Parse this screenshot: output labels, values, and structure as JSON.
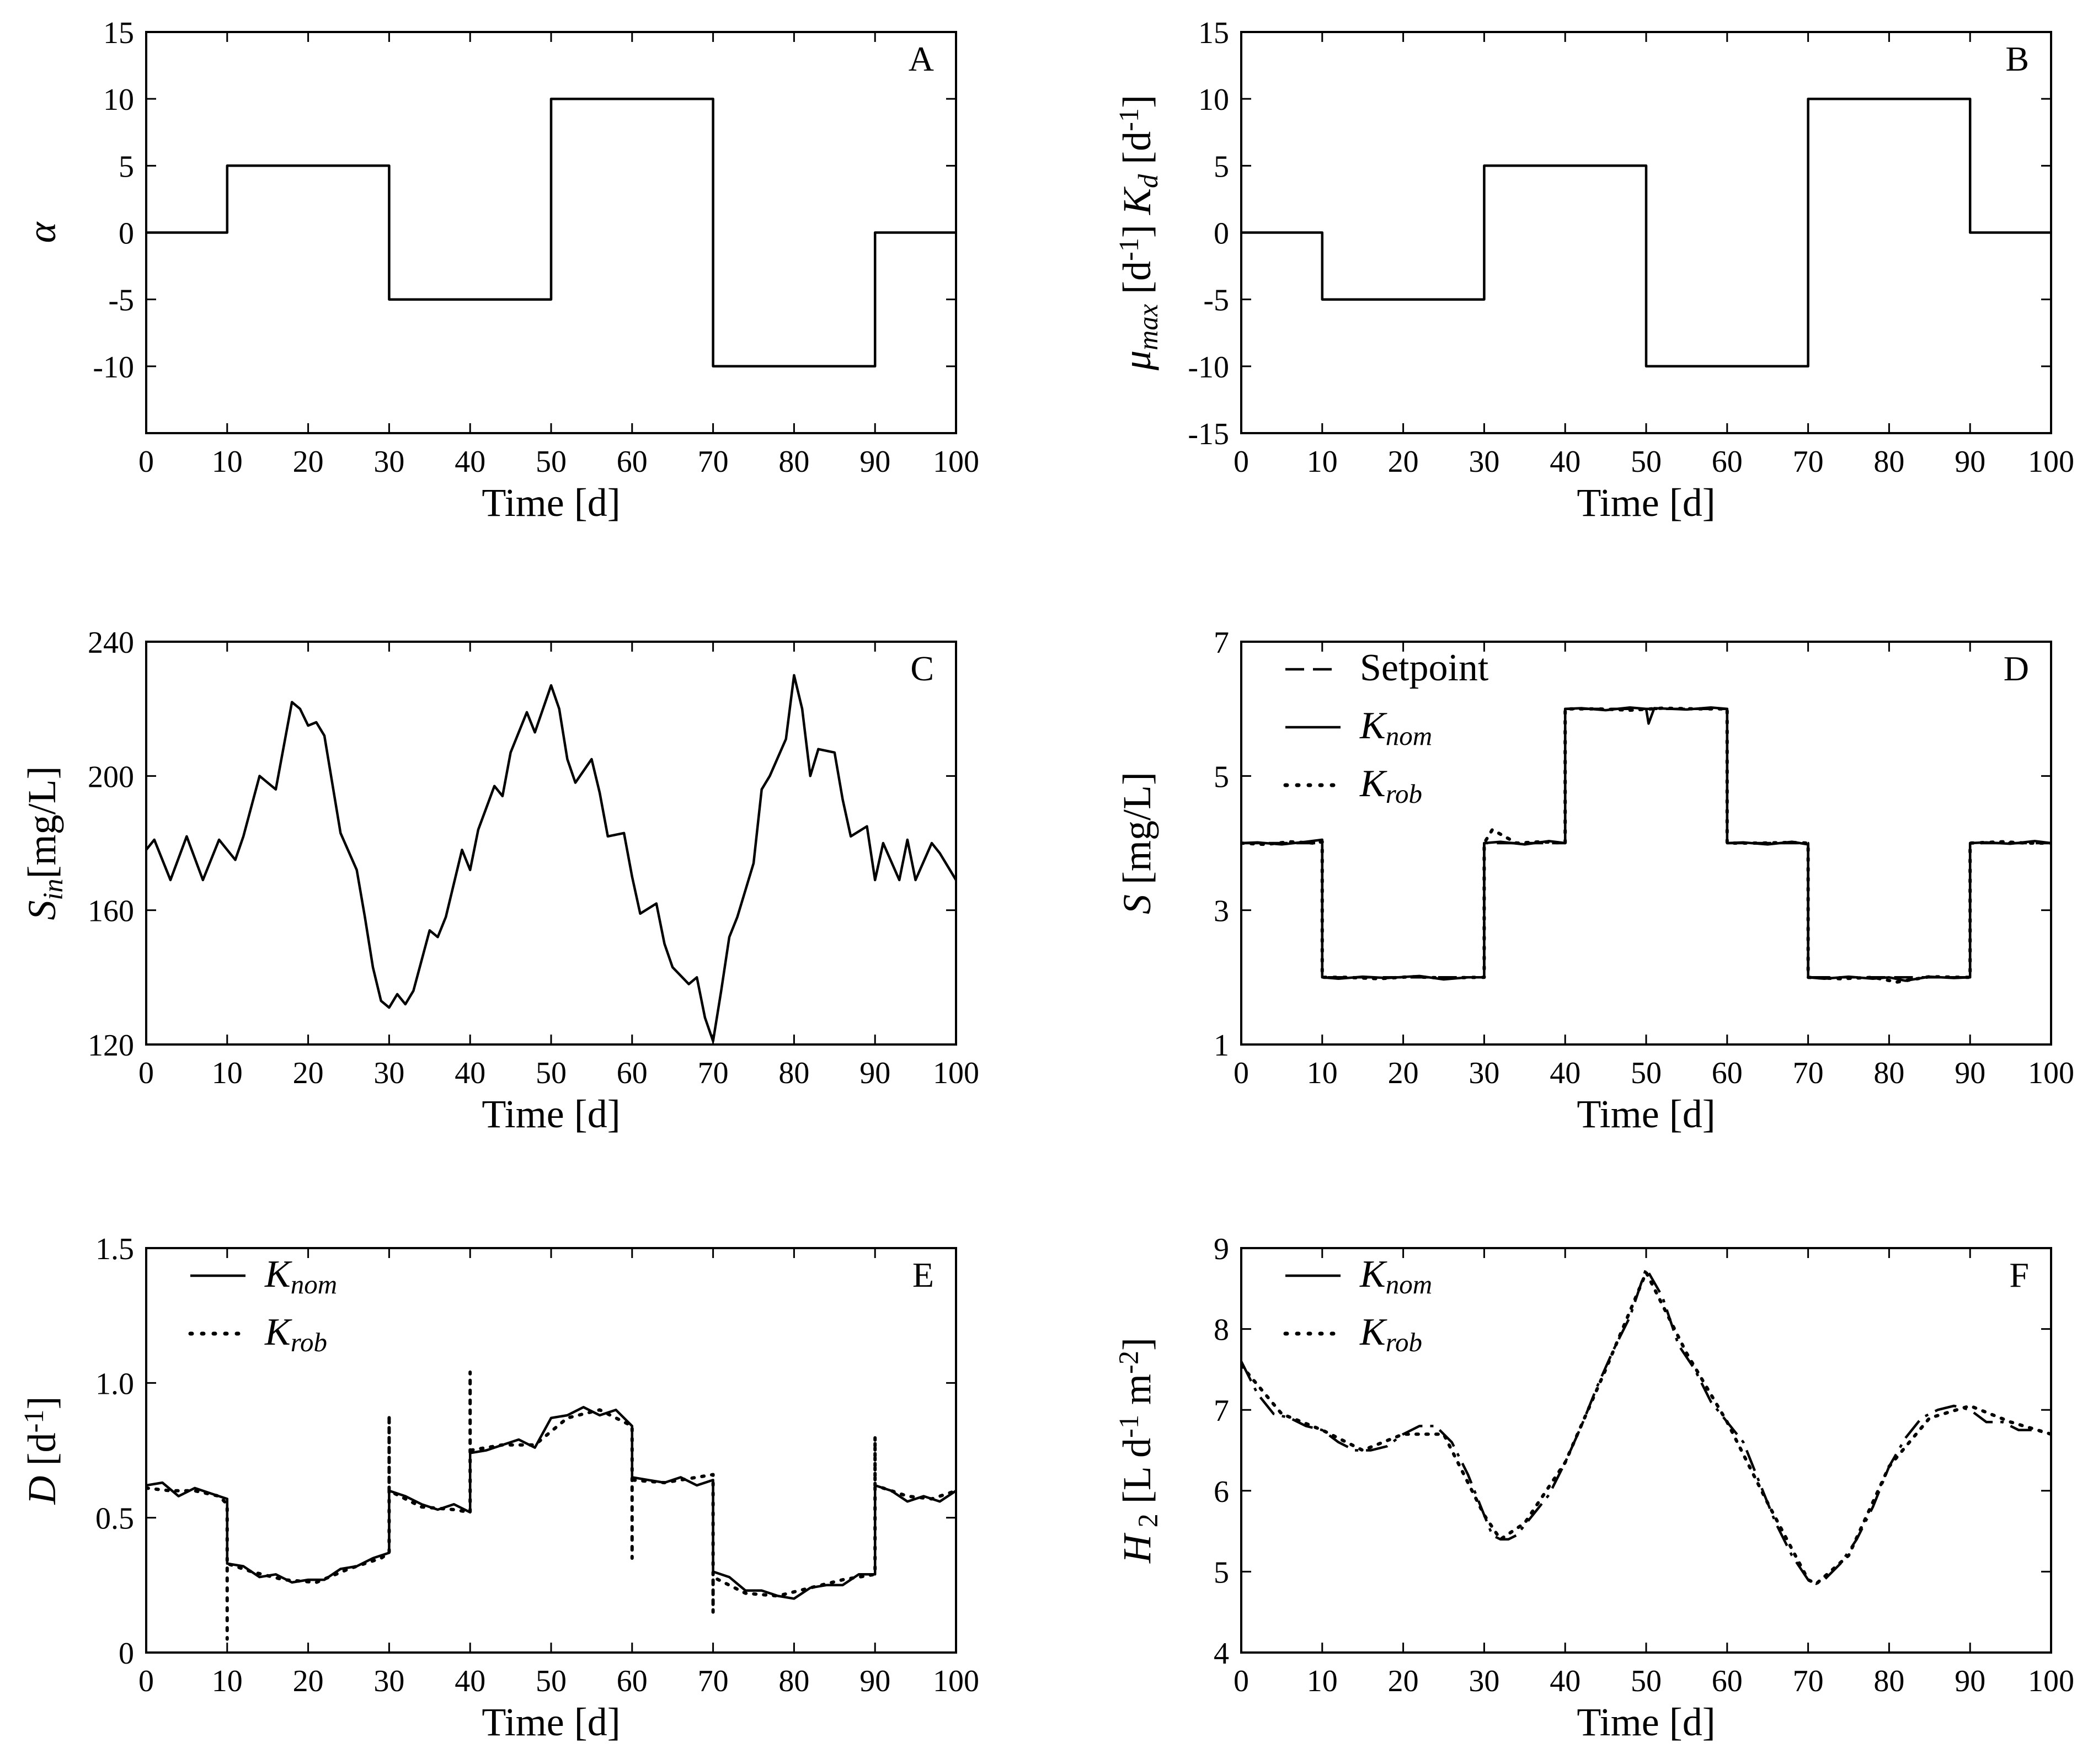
{
  "chart_data": [
    {
      "panel": "A",
      "type": "line",
      "ylabel": "α",
      "xlabel": "Time [d]",
      "xlim": [
        0,
        100
      ],
      "ylim": [
        -15,
        15
      ],
      "xticks": [
        "0",
        "10",
        "20",
        "30",
        "40",
        "50",
        "60",
        "70",
        "80",
        "90",
        "100"
      ],
      "yticks": [
        "-10",
        "-5",
        "0",
        "5",
        "10",
        "15"
      ],
      "series": [
        {
          "style": "solid",
          "x": [
            0,
            10,
            10,
            30,
            30,
            50,
            50,
            70,
            70,
            90,
            90,
            100
          ],
          "y": [
            0,
            0,
            5,
            5,
            -5,
            -5,
            10,
            10,
            -10,
            -10,
            0,
            0
          ]
        }
      ]
    },
    {
      "panel": "B",
      "type": "line",
      "ylabel": "μmax [d-1]  Kd [d-1]",
      "xlabel": "Time [d]",
      "xlim": [
        0,
        100
      ],
      "ylim": [
        -15,
        15
      ],
      "xticks": [
        "0",
        "10",
        "20",
        "30",
        "40",
        "50",
        "60",
        "70",
        "80",
        "90",
        "100"
      ],
      "yticks": [
        "-15",
        "-10",
        "-5",
        "0",
        "5",
        "10",
        "15"
      ],
      "series": [
        {
          "style": "solid",
          "x": [
            0,
            10,
            10,
            30,
            30,
            50,
            50,
            70,
            70,
            90,
            90,
            100
          ],
          "y": [
            0,
            0,
            -5,
            -5,
            5,
            5,
            -10,
            -10,
            10,
            10,
            0,
            0
          ]
        }
      ]
    },
    {
      "panel": "C",
      "type": "line",
      "ylabel": "Sin[mg/L]",
      "xlabel": "Time [d]",
      "xlim": [
        0,
        100
      ],
      "ylim": [
        120,
        240
      ],
      "xticks": [
        "0",
        "10",
        "20",
        "30",
        "40",
        "50",
        "60",
        "70",
        "80",
        "90",
        "100"
      ],
      "yticks": [
        "120",
        "160",
        "200",
        "240"
      ],
      "series": [
        {
          "style": "solid",
          "x": [
            0,
            1,
            3,
            5,
            7,
            9,
            11,
            12,
            14,
            16,
            18,
            19,
            20,
            21,
            22,
            24,
            26,
            27,
            28,
            29,
            30,
            31,
            32,
            33,
            35,
            36,
            37,
            39,
            40,
            41,
            43,
            44,
            45,
            47,
            48,
            49,
            50,
            51,
            52,
            53,
            55,
            56,
            57,
            59,
            60,
            61,
            63,
            64,
            65,
            67,
            68,
            69,
            70,
            71,
            72,
            73,
            75,
            76,
            77,
            79,
            80,
            81,
            82,
            83,
            85,
            86,
            87,
            89,
            90,
            91,
            93,
            94,
            95,
            97,
            98,
            100
          ],
          "y": [
            178,
            181,
            169,
            182,
            169,
            181,
            175,
            182,
            200,
            196,
            222,
            220,
            215,
            216,
            212,
            183,
            172,
            158,
            143,
            133,
            131,
            135,
            132,
            136,
            154,
            152,
            158,
            178,
            172,
            184,
            197,
            194,
            207,
            219,
            213,
            220,
            227,
            220,
            205,
            198,
            205,
            195,
            182,
            183,
            170,
            159,
            162,
            150,
            143,
            138,
            140,
            128,
            121,
            136,
            152,
            158,
            174,
            196,
            200,
            211,
            230,
            220,
            200,
            208,
            207,
            193,
            182,
            185,
            169,
            180,
            169,
            181,
            169,
            180,
            177,
            169
          ]
        }
      ]
    },
    {
      "panel": "D",
      "type": "line",
      "ylabel": "S [mg/L]",
      "xlabel": "Time [d]",
      "xlim": [
        0,
        100
      ],
      "ylim": [
        1,
        7
      ],
      "xticks": [
        "0",
        "10",
        "20",
        "30",
        "40",
        "50",
        "60",
        "70",
        "80",
        "90",
        "100"
      ],
      "yticks": [
        "1",
        "3",
        "5",
        "7"
      ],
      "legend": [
        "Setpoint",
        "Knom",
        "Krob"
      ],
      "legend_position": "top-left",
      "series": [
        {
          "name": "Setpoint",
          "style": "dashed",
          "x": [
            0,
            10,
            10,
            30,
            30,
            40,
            40,
            60,
            60,
            70,
            70,
            90,
            90,
            100
          ],
          "y": [
            4,
            4,
            2,
            2,
            4,
            4,
            6,
            6,
            4,
            4,
            2,
            2,
            4,
            4
          ]
        },
        {
          "name": "Knom",
          "style": "solid",
          "x": [
            0,
            2,
            5,
            8,
            10,
            10,
            12,
            15,
            18,
            22,
            25,
            28,
            30,
            30,
            32,
            35,
            38,
            40,
            40,
            42,
            45,
            48,
            50,
            50.3,
            51,
            55,
            58,
            60,
            60,
            62,
            65,
            68,
            70,
            70,
            72,
            75,
            78,
            80,
            82,
            85,
            88,
            90,
            90,
            92,
            95,
            98,
            100
          ],
          "y": [
            4,
            4.01,
            3.98,
            4.02,
            4.05,
            2,
            1.98,
            2.01,
            1.99,
            2.02,
            1.97,
            2.0,
            2.0,
            4,
            4.02,
            3.98,
            4.03,
            4.0,
            6,
            6.01,
            5.98,
            6.02,
            6.0,
            5.78,
            6.01,
            5.99,
            6.02,
            6.0,
            4,
            4.01,
            3.98,
            4.02,
            3.98,
            2,
            1.98,
            2.01,
            1.98,
            2.0,
            1.95,
            2.01,
            1.99,
            2.0,
            4,
            4.01,
            3.99,
            4.03,
            4.0
          ]
        },
        {
          "name": "Krob",
          "style": "dotted",
          "x": [
            0,
            3,
            6,
            9,
            10,
            10,
            13,
            17,
            21,
            25,
            29,
            30,
            30,
            31,
            34,
            37,
            40,
            40,
            44,
            48,
            52,
            56,
            60,
            60,
            64,
            68,
            70,
            70,
            74,
            78,
            81,
            85,
            89,
            90,
            90,
            94,
            97,
            100
          ],
          "y": [
            4,
            3.98,
            4.02,
            4.0,
            4.02,
            2,
            2.0,
            1.98,
            2.01,
            1.99,
            2.0,
            2.0,
            4,
            4.2,
            4.0,
            4.02,
            4.0,
            6,
            6.0,
            5.98,
            6.01,
            6.0,
            6.0,
            4,
            4.0,
            4.01,
            4.0,
            2,
            1.98,
            2.0,
            1.93,
            2.01,
            2.0,
            2.0,
            4,
            4.02,
            4.0,
            4.0
          ]
        }
      ]
    },
    {
      "panel": "E",
      "type": "line",
      "ylabel": "D [d-1]",
      "xlabel": "Time [d]",
      "xlim": [
        0,
        100
      ],
      "ylim": [
        0,
        1.5
      ],
      "xticks": [
        "0",
        "10",
        "20",
        "30",
        "40",
        "50",
        "60",
        "70",
        "80",
        "90",
        "100"
      ],
      "yticks": [
        "0",
        "0.5",
        "1.0",
        "1.5"
      ],
      "legend": [
        "Knom",
        "Krob"
      ],
      "legend_position": "top-left",
      "series": [
        {
          "name": "Knom",
          "style": "solid",
          "x": [
            0,
            2,
            4,
            6,
            8,
            10,
            10,
            12,
            14,
            16,
            18,
            20,
            22,
            24,
            26,
            28,
            30,
            30,
            32,
            34,
            36,
            38,
            40,
            40,
            42,
            44,
            46,
            48,
            50,
            52,
            54,
            56,
            58,
            60,
            60,
            62,
            64,
            66,
            68,
            70,
            70,
            72,
            74,
            76,
            78,
            80,
            82,
            84,
            86,
            88,
            90,
            90,
            92,
            94,
            96,
            98,
            100
          ],
          "y": [
            0.62,
            0.63,
            0.58,
            0.61,
            0.59,
            0.57,
            0.33,
            0.32,
            0.28,
            0.29,
            0.26,
            0.27,
            0.27,
            0.31,
            0.32,
            0.35,
            0.37,
            0.6,
            0.58,
            0.55,
            0.53,
            0.55,
            0.52,
            0.74,
            0.75,
            0.77,
            0.79,
            0.76,
            0.87,
            0.88,
            0.91,
            0.88,
            0.9,
            0.84,
            0.65,
            0.64,
            0.63,
            0.65,
            0.62,
            0.64,
            0.3,
            0.28,
            0.23,
            0.23,
            0.21,
            0.2,
            0.24,
            0.25,
            0.25,
            0.29,
            0.29,
            0.62,
            0.6,
            0.56,
            0.58,
            0.56,
            0.6
          ]
        },
        {
          "name": "Krob",
          "style": "dotted",
          "x": [
            0,
            3,
            6,
            9,
            10,
            10,
            10,
            13,
            17,
            21,
            25,
            29,
            30,
            30,
            30,
            34,
            38,
            40,
            40,
            40,
            44,
            48,
            52,
            56,
            60,
            60,
            60,
            64,
            68,
            70,
            70,
            70,
            74,
            78,
            82,
            86,
            90,
            90,
            90,
            94,
            97,
            100
          ],
          "y": [
            0.61,
            0.6,
            0.6,
            0.58,
            0.55,
            0.05,
            0.33,
            0.3,
            0.27,
            0.26,
            0.31,
            0.35,
            0.37,
            0.88,
            0.6,
            0.54,
            0.53,
            0.52,
            1.04,
            0.75,
            0.77,
            0.77,
            0.87,
            0.9,
            0.84,
            0.35,
            0.64,
            0.63,
            0.65,
            0.66,
            0.15,
            0.28,
            0.22,
            0.21,
            0.24,
            0.27,
            0.29,
            0.8,
            0.62,
            0.58,
            0.57,
            0.6
          ]
        }
      ]
    },
    {
      "panel": "F",
      "type": "line",
      "ylabel": "H2 [L d-1 m-2]",
      "xlabel": "Time [d]",
      "xlim": [
        0,
        100
      ],
      "ylim": [
        4,
        9
      ],
      "xticks": [
        "0",
        "10",
        "20",
        "30",
        "40",
        "50",
        "60",
        "70",
        "80",
        "90",
        "100"
      ],
      "yticks": [
        "4",
        "5",
        "6",
        "7",
        "8",
        "9"
      ],
      "legend": [
        "Knom",
        "Krob"
      ],
      "legend_position": "top-left",
      "series": [
        {
          "name": "Knom",
          "style": "dashdot",
          "x": [
            0,
            2,
            4,
            6,
            8,
            10,
            12,
            14,
            16,
            18,
            20,
            22,
            24,
            26,
            28,
            30,
            31,
            32,
            33,
            34,
            36,
            38,
            40,
            42,
            44,
            46,
            48,
            50,
            52,
            54,
            56,
            58,
            60,
            62,
            64,
            66,
            68,
            70,
            71,
            72,
            74,
            76,
            78,
            80,
            82,
            84,
            86,
            88,
            90,
            92,
            94,
            96,
            98,
            100
          ],
          "y": [
            7.6,
            7.2,
            6.95,
            6.9,
            6.8,
            6.75,
            6.6,
            6.5,
            6.5,
            6.55,
            6.7,
            6.8,
            6.8,
            6.6,
            6.2,
            5.7,
            5.45,
            5.4,
            5.4,
            5.45,
            5.7,
            5.95,
            6.35,
            6.8,
            7.3,
            7.75,
            8.15,
            8.75,
            8.4,
            7.8,
            7.5,
            7.1,
            6.85,
            6.6,
            6.1,
            5.6,
            5.2,
            4.9,
            4.85,
            4.9,
            5.1,
            5.4,
            5.8,
            6.3,
            6.65,
            6.9,
            7.0,
            7.05,
            7.0,
            6.85,
            6.85,
            6.75,
            6.75,
            6.7
          ]
        },
        {
          "name": "Krob",
          "style": "dotted",
          "x": [
            0,
            5,
            10,
            15,
            20,
            25,
            30,
            32,
            35,
            40,
            45,
            50,
            55,
            60,
            65,
            70,
            71,
            75,
            80,
            85,
            90,
            95,
            100
          ],
          "y": [
            7.55,
            6.95,
            6.75,
            6.5,
            6.7,
            6.7,
            5.7,
            5.4,
            5.6,
            6.35,
            7.5,
            8.7,
            7.7,
            6.85,
            5.85,
            4.9,
            4.85,
            5.2,
            6.3,
            6.9,
            7.05,
            6.85,
            6.7
          ]
        }
      ]
    }
  ]
}
